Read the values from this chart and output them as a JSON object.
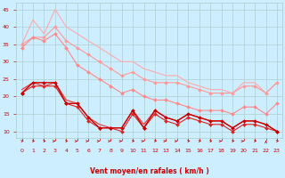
{
  "x": [
    0,
    1,
    2,
    3,
    4,
    5,
    6,
    7,
    8,
    9,
    10,
    11,
    12,
    13,
    14,
    15,
    16,
    17,
    18,
    19,
    20,
    21,
    22,
    23
  ],
  "lines": [
    {
      "y": [
        35,
        42,
        38,
        45,
        40,
        38,
        36,
        34,
        32,
        30,
        30,
        28,
        27,
        26,
        26,
        24,
        23,
        22,
        22,
        21,
        24,
        24,
        21,
        24
      ],
      "color": "#ffaaaa",
      "lw": 0.8,
      "marker": null,
      "zorder": 2
    },
    {
      "y": [
        35,
        37,
        37,
        40,
        36,
        34,
        32,
        30,
        28,
        26,
        27,
        25,
        24,
        24,
        24,
        23,
        22,
        21,
        21,
        21,
        23,
        23,
        21,
        24
      ],
      "color": "#ff9999",
      "lw": 0.8,
      "marker": "D",
      "markersize": 2.0,
      "zorder": 2
    },
    {
      "y": [
        34,
        37,
        36,
        38,
        34,
        29,
        27,
        25,
        23,
        21,
        22,
        20,
        19,
        19,
        18,
        17,
        16,
        16,
        16,
        15,
        17,
        17,
        15,
        18
      ],
      "color": "#ff8888",
      "lw": 0.8,
      "marker": "D",
      "markersize": 2.0,
      "zorder": 2
    },
    {
      "y": [
        21,
        24,
        24,
        24,
        18,
        18,
        14,
        11,
        11,
        11,
        16,
        11,
        16,
        14,
        13,
        15,
        14,
        13,
        13,
        11,
        13,
        13,
        12,
        10
      ],
      "color": "#cc0000",
      "lw": 1.0,
      "marker": "D",
      "markersize": 2.0,
      "zorder": 4
    },
    {
      "y": [
        21,
        23,
        23,
        23,
        18,
        17,
        13,
        11,
        11,
        10,
        15,
        11,
        15,
        13,
        12,
        14,
        13,
        12,
        12,
        10,
        12,
        12,
        11,
        10
      ],
      "color": "#dd2222",
      "lw": 0.8,
      "marker": "D",
      "markersize": 2.0,
      "zorder": 3
    },
    {
      "y": [
        22,
        24,
        23,
        24,
        19,
        18,
        14,
        12,
        11,
        11,
        16,
        12,
        16,
        14,
        13,
        15,
        14,
        13,
        13,
        11,
        13,
        13,
        12,
        10
      ],
      "color": "#ee3333",
      "lw": 0.8,
      "marker": null,
      "zorder": 3
    }
  ],
  "xlabel": "Vent moyen/en rafales ( km/h )",
  "xlim": [
    -0.5,
    23.5
  ],
  "ylim": [
    8,
    47
  ],
  "yticks": [
    10,
    15,
    20,
    25,
    30,
    35,
    40,
    45
  ],
  "xticks": [
    0,
    1,
    2,
    3,
    4,
    5,
    6,
    7,
    8,
    9,
    10,
    11,
    12,
    13,
    14,
    15,
    16,
    17,
    18,
    19,
    20,
    21,
    22,
    23
  ],
  "bg_color": "#cceeff",
  "grid_color": "#aacccc",
  "tick_color": "#cc0000",
  "label_color": "#cc0000",
  "arrow_angles": [
    45,
    45,
    45,
    0,
    45,
    0,
    0,
    0,
    0,
    0,
    45,
    0,
    45,
    0,
    0,
    45,
    45,
    45,
    0,
    45,
    0,
    45,
    90,
    45
  ]
}
